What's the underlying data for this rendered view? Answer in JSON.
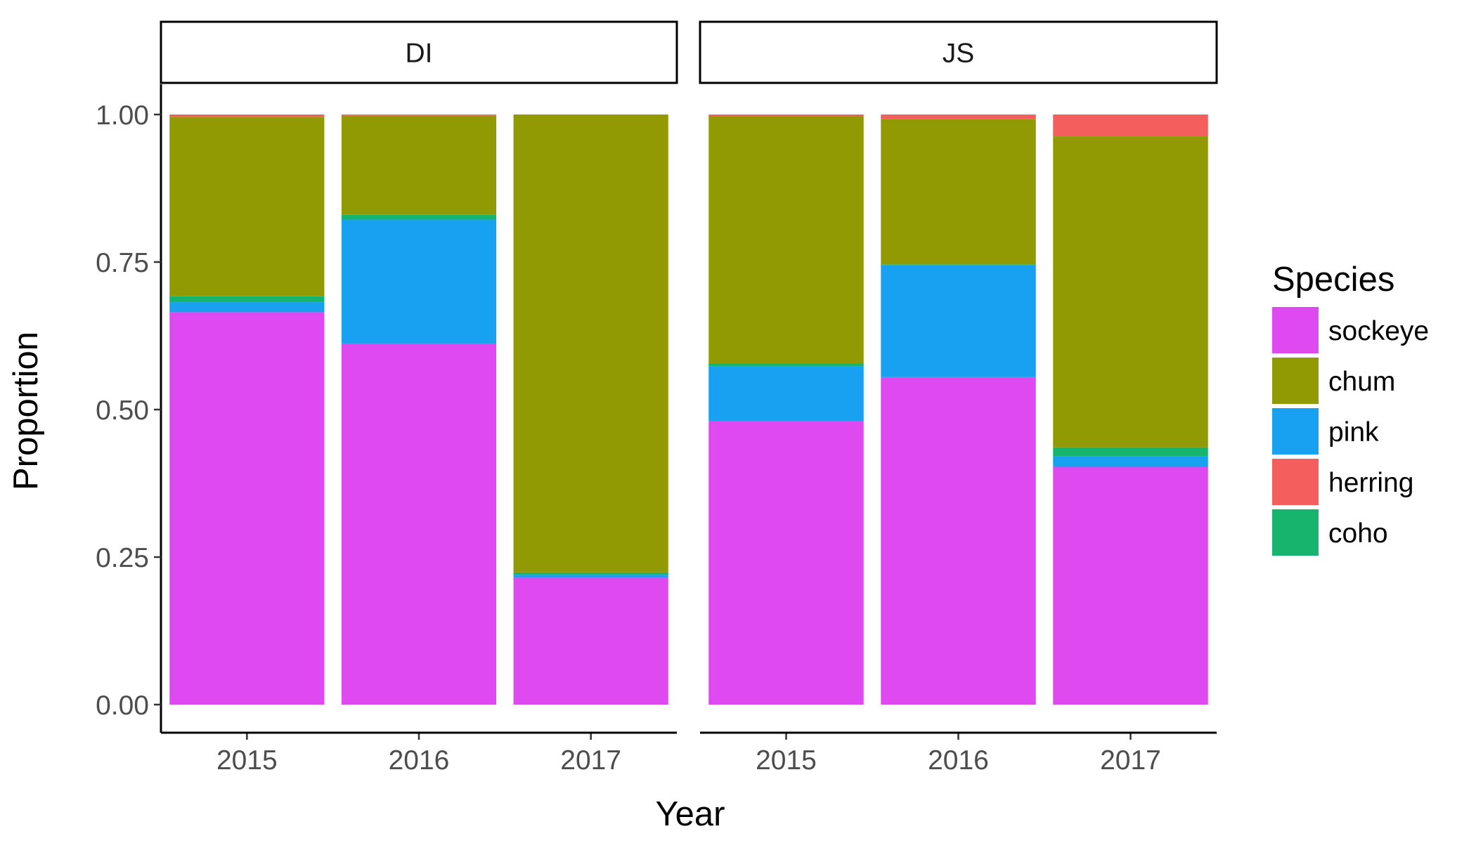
{
  "chart_data": {
    "type": "bar",
    "stacked": true,
    "facets": [
      {
        "name": "DI",
        "categories": [
          "2015",
          "2016",
          "2017"
        ],
        "series": [
          {
            "name": "sockeye",
            "values": [
              0.665,
              0.612,
              0.215
            ]
          },
          {
            "name": "pink",
            "values": [
              0.017,
              0.21,
              0.005
            ]
          },
          {
            "name": "coho",
            "values": [
              0.01,
              0.008,
              0.004
            ]
          },
          {
            "name": "chum",
            "values": [
              0.304,
              0.168,
              0.776
            ]
          },
          {
            "name": "herring",
            "values": [
              0.004,
              0.002,
              0.0
            ]
          }
        ]
      },
      {
        "name": "JS",
        "categories": [
          "2015",
          "2016",
          "2017"
        ],
        "series": [
          {
            "name": "sockeye",
            "values": [
              0.48,
              0.555,
              0.403
            ]
          },
          {
            "name": "pink",
            "values": [
              0.093,
              0.19,
              0.018
            ]
          },
          {
            "name": "coho",
            "values": [
              0.005,
              0.001,
              0.015
            ]
          },
          {
            "name": "chum",
            "values": [
              0.419,
              0.246,
              0.527
            ]
          },
          {
            "name": "herring",
            "values": [
              0.003,
              0.008,
              0.037
            ]
          }
        ]
      }
    ],
    "stack_order": [
      "sockeye",
      "pink",
      "coho",
      "chum",
      "herring"
    ],
    "xlabel": "Year",
    "ylabel": "Proportion",
    "ylim": [
      0,
      1
    ],
    "yticks": [
      0,
      0.25,
      0.5,
      0.75,
      1
    ],
    "ytick_labels": [
      "0.00",
      "0.25",
      "0.50",
      "0.75",
      "1.00"
    ],
    "grid": false,
    "legend": {
      "title": "Species",
      "position": "right",
      "entries": [
        {
          "name": "sockeye",
          "color": "#DF49F0"
        },
        {
          "name": "chum",
          "color": "#929A03"
        },
        {
          "name": "pink",
          "color": "#17A1F0"
        },
        {
          "name": "herring",
          "color": "#F45F5E"
        },
        {
          "name": "coho",
          "color": "#16B46C"
        }
      ]
    }
  }
}
